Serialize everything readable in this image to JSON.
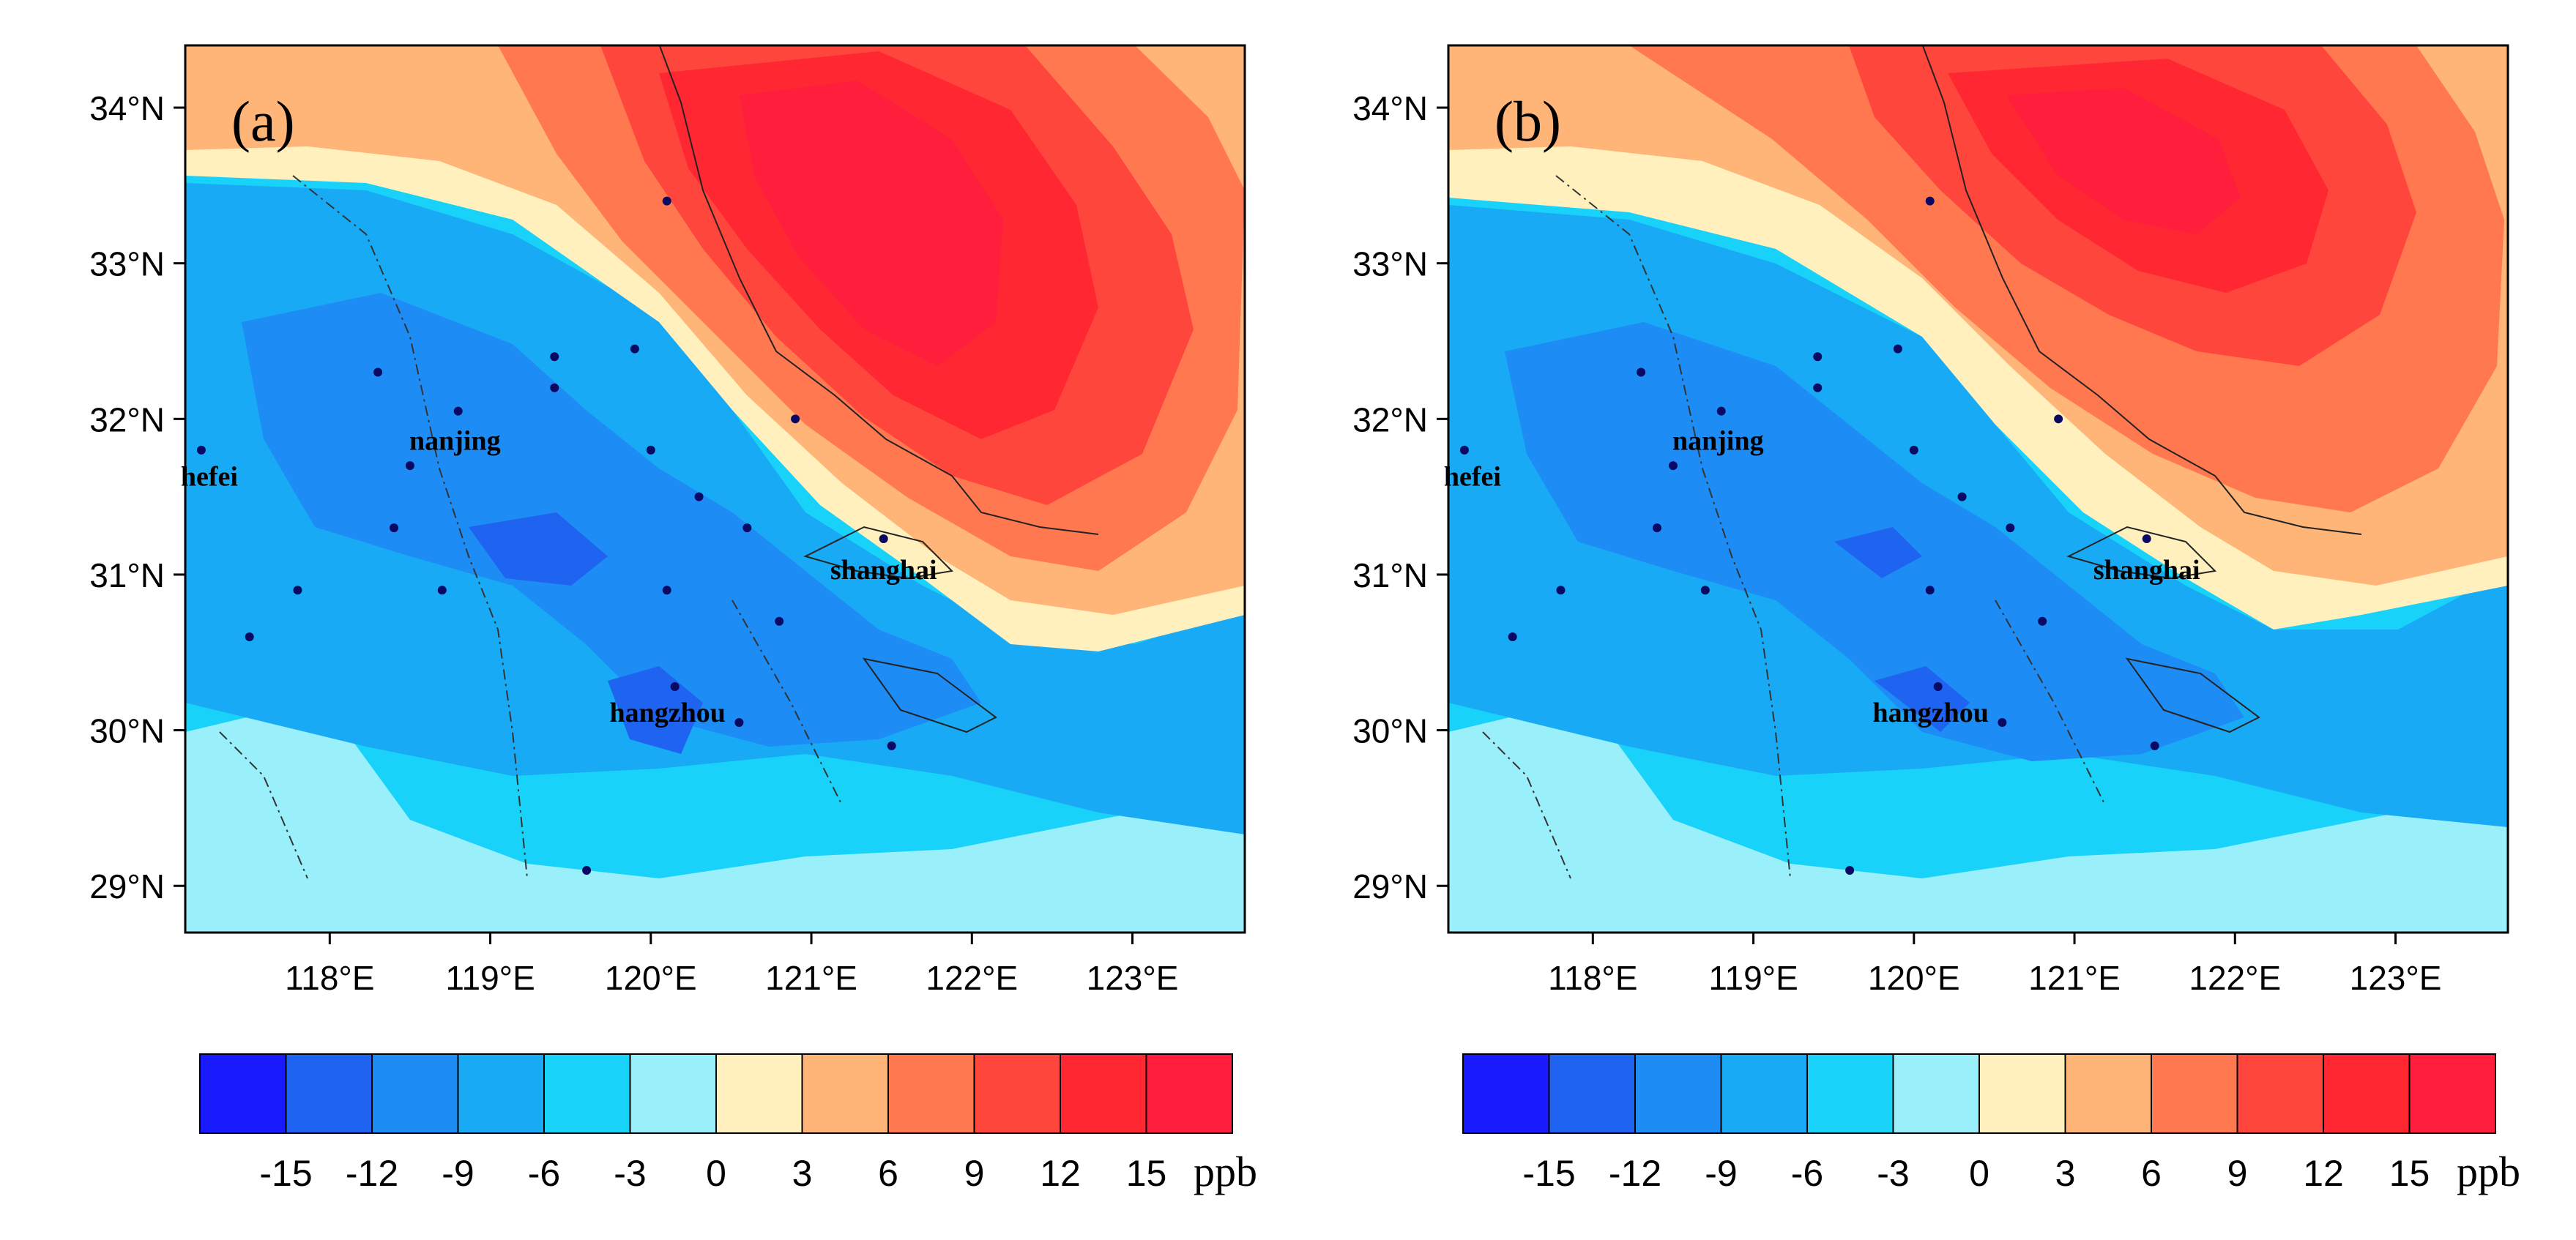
{
  "panels": [
    {
      "label": "(a)",
      "lat_ticks": [
        "34°N",
        "33°N",
        "32°N",
        "31°N",
        "30°N",
        "29°N"
      ],
      "lon_ticks": [
        "118°E",
        "119°E",
        "120°E",
        "121°E",
        "122°E",
        "123°E"
      ],
      "cities": [
        {
          "name": "nanjing",
          "lon": 118.78,
          "lat": 32.06
        },
        {
          "name": "hefei",
          "lon": 117.25,
          "lat": 31.83
        },
        {
          "name": "shanghai",
          "lon": 121.45,
          "lat": 31.23
        },
        {
          "name": "hangzhou",
          "lon": 120.15,
          "lat": 30.28
        }
      ],
      "units": "ppb",
      "colorbar_labels": [
        "-15",
        "-12",
        "-9",
        "-6",
        "-3",
        "0",
        "3",
        "6",
        "9",
        "12",
        "15"
      ]
    },
    {
      "label": "(b)",
      "lat_ticks": [
        "34°N",
        "33°N",
        "32°N",
        "31°N",
        "30°N",
        "29°N"
      ],
      "lon_ticks": [
        "118°E",
        "119°E",
        "120°E",
        "121°E",
        "122°E",
        "123°E"
      ],
      "cities": [
        {
          "name": "nanjing",
          "lon": 118.78,
          "lat": 32.06
        },
        {
          "name": "hefei",
          "lon": 117.25,
          "lat": 31.83
        },
        {
          "name": "shanghai",
          "lon": 121.45,
          "lat": 31.23
        },
        {
          "name": "hangzhou",
          "lon": 120.15,
          "lat": 30.28
        }
      ],
      "units": "ppb",
      "colorbar_labels": [
        "-15",
        "-12",
        "-9",
        "-6",
        "-3",
        "0",
        "3",
        "6",
        "9",
        "12",
        "15"
      ]
    }
  ],
  "colors": {
    "levels": [
      "#1a1aff",
      "#1e64f0",
      "#1e8cf5",
      "#19aaf5",
      "#19d2fa",
      "#9af0fa",
      "#fff0be",
      "#ffb478",
      "#ff7850",
      "#ff463c",
      "#ff2832",
      "#ff1e3c"
    ]
  }
}
